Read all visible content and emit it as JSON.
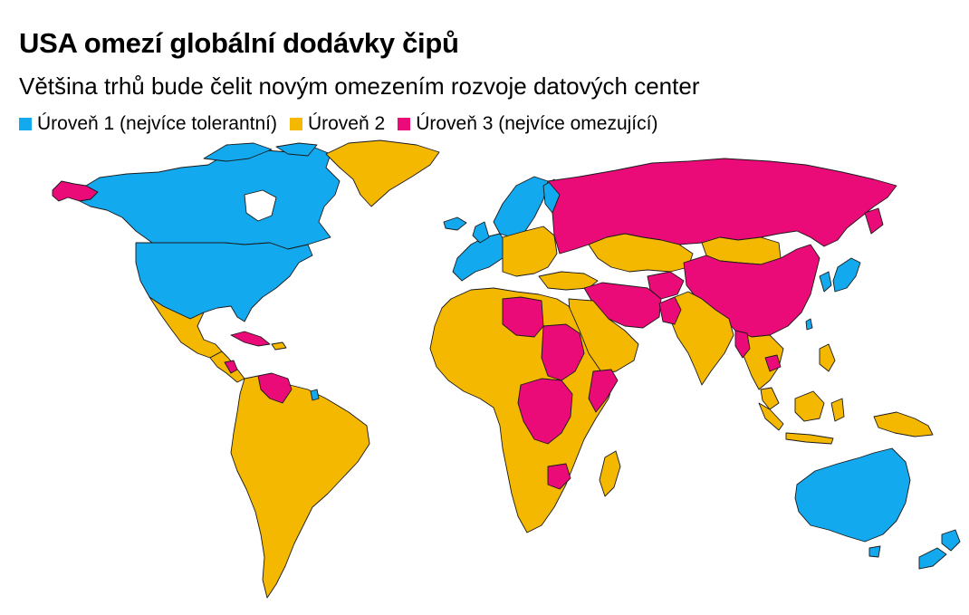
{
  "title": "USA omezí globální dodávky čipů",
  "subtitle": "Většina trhů bude čelit novým omezením rozvoje datových center",
  "legend": [
    {
      "label": "Úroveň 1 (nejvíce tolerantní)",
      "color": "#12a9ee"
    },
    {
      "label": "Úroveň 2",
      "color": "#f5b800"
    },
    {
      "label": "Úroveň 3 (nejvíce omezující)",
      "color": "#ea0a78"
    }
  ],
  "tiers": {
    "tier1": {
      "color": "#12a9ee"
    },
    "tier2": {
      "color": "#f5b800"
    },
    "tier3": {
      "color": "#ea0a78"
    }
  }
}
